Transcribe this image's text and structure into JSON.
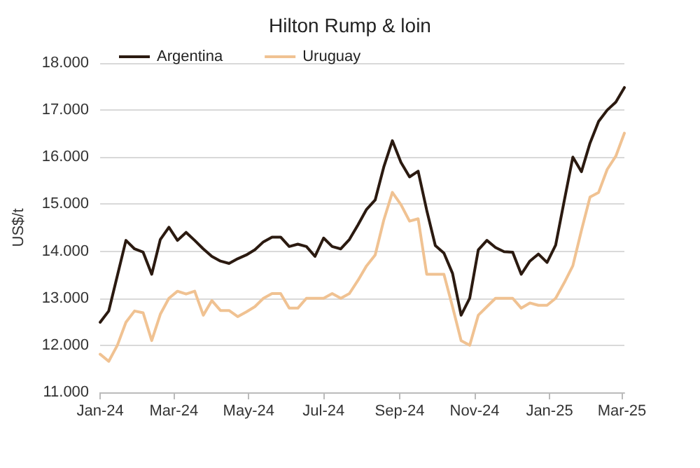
{
  "chart_data": {
    "type": "line",
    "title": "Hilton Rump & loin",
    "ylabel": "US$/t",
    "x": [
      "2024-01-01",
      "2024-01-08",
      "2024-01-15",
      "2024-01-22",
      "2024-01-29",
      "2024-02-05",
      "2024-02-12",
      "2024-02-19",
      "2024-02-26",
      "2024-03-04",
      "2024-03-11",
      "2024-03-18",
      "2024-03-25",
      "2024-04-01",
      "2024-04-08",
      "2024-04-15",
      "2024-04-22",
      "2024-04-29",
      "2024-05-06",
      "2024-05-13",
      "2024-05-20",
      "2024-05-27",
      "2024-06-03",
      "2024-06-10",
      "2024-06-17",
      "2024-06-24",
      "2024-07-01",
      "2024-07-08",
      "2024-07-15",
      "2024-07-22",
      "2024-07-29",
      "2024-08-05",
      "2024-08-12",
      "2024-08-19",
      "2024-08-26",
      "2024-09-02",
      "2024-09-09",
      "2024-09-16",
      "2024-09-23",
      "2024-09-30",
      "2024-10-07",
      "2024-10-14",
      "2024-10-21",
      "2024-10-28",
      "2024-11-04",
      "2024-11-11",
      "2024-11-18",
      "2024-11-25",
      "2024-12-02",
      "2024-12-09",
      "2024-12-16",
      "2024-12-23",
      "2024-12-30",
      "2025-01-06",
      "2025-01-13",
      "2025-01-20",
      "2025-01-27",
      "2025-02-03",
      "2025-02-10",
      "2025-02-17",
      "2025-02-24",
      "2025-03-03"
    ],
    "series": [
      {
        "name": "Argentina",
        "color": "#2b1a10",
        "values": [
          12490,
          12730,
          13480,
          14230,
          14050,
          13980,
          13510,
          14250,
          14510,
          14230,
          14400,
          14230,
          14050,
          13890,
          13790,
          13740,
          13840,
          13920,
          14030,
          14200,
          14300,
          14300,
          14100,
          14150,
          14100,
          13890,
          14280,
          14100,
          14050,
          14250,
          14560,
          14890,
          15090,
          15790,
          16350,
          15890,
          15580,
          15700,
          14870,
          14120,
          13960,
          13530,
          12640,
          13000,
          14030,
          14230,
          14080,
          13990,
          13980,
          13510,
          13790,
          13940,
          13760,
          14130,
          15070,
          16000,
          15690,
          16300,
          16760,
          17000,
          17170,
          17480
        ]
      },
      {
        "name": "Uruguay",
        "color": "#f0c292",
        "values": [
          11810,
          11660,
          12000,
          12490,
          12730,
          12690,
          12100,
          12660,
          13000,
          13150,
          13090,
          13150,
          12640,
          12950,
          12740,
          12740,
          12610,
          12710,
          12820,
          13000,
          13100,
          13100,
          12790,
          12790,
          13000,
          13000,
          13000,
          13100,
          13000,
          13100,
          13380,
          13690,
          13920,
          14660,
          15250,
          14990,
          14640,
          14690,
          13510,
          13510,
          13510,
          12820,
          12100,
          12000,
          12640,
          12820,
          13000,
          13000,
          13000,
          12790,
          12900,
          12850,
          12850,
          13000,
          13330,
          13690,
          14440,
          15150,
          15250,
          15740,
          16020,
          16510
        ]
      }
    ],
    "xlim": [
      "2024-01-01",
      "2025-03-03"
    ],
    "xticks": [
      {
        "value": "2024-01-01",
        "label": "Jan-24"
      },
      {
        "value": "2024-03-01",
        "label": "Mar-24"
      },
      {
        "value": "2024-05-01",
        "label": "May-24"
      },
      {
        "value": "2024-07-01",
        "label": "Jul-24"
      },
      {
        "value": "2024-09-01",
        "label": "Sep-24"
      },
      {
        "value": "2024-11-01",
        "label": "Nov-24"
      },
      {
        "value": "2025-01-01",
        "label": "Jan-25"
      },
      {
        "value": "2025-03-01",
        "label": "Mar-25"
      }
    ],
    "ylim": [
      11000,
      18000
    ],
    "yticks": [
      {
        "value": 11000,
        "label": "11.000"
      },
      {
        "value": 12000,
        "label": "12.000"
      },
      {
        "value": 13000,
        "label": "13.000"
      },
      {
        "value": 14000,
        "label": "14.000"
      },
      {
        "value": 15000,
        "label": "15.000"
      },
      {
        "value": 16000,
        "label": "16.000"
      },
      {
        "value": 17000,
        "label": "17.000"
      },
      {
        "value": 18000,
        "label": "18.000"
      }
    ],
    "grid": "y",
    "legend": "top left",
    "marker": "none",
    "line_style": "solid"
  }
}
